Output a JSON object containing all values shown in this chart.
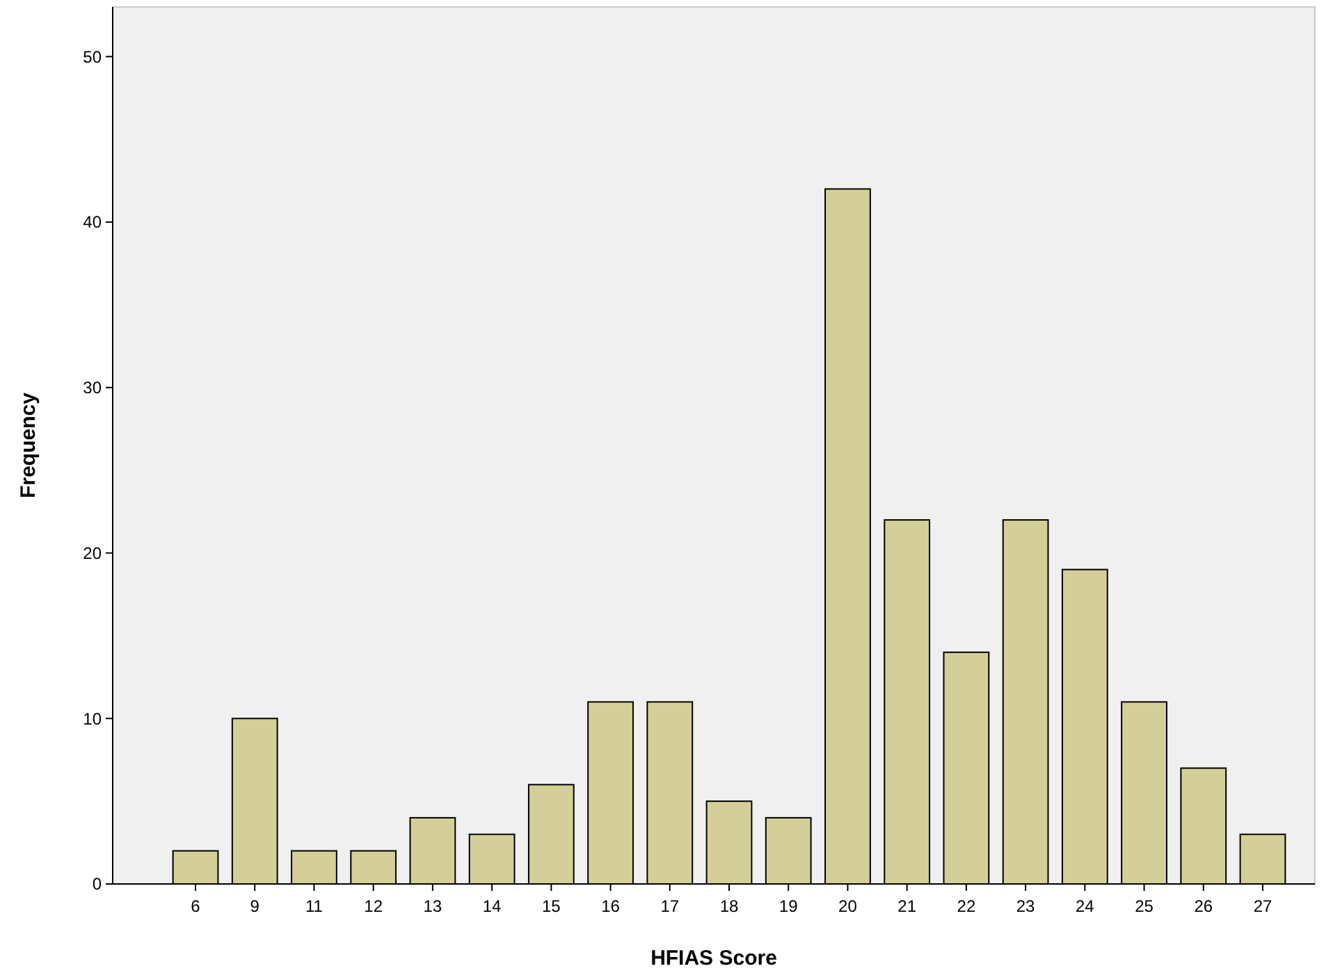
{
  "chart_data": {
    "type": "bar",
    "xlabel": "HFIAS Score",
    "ylabel": "Frequency",
    "categories": [
      "6",
      "9",
      "11",
      "12",
      "13",
      "14",
      "15",
      "16",
      "17",
      "18",
      "19",
      "20",
      "21",
      "22",
      "23",
      "24",
      "25",
      "26",
      "27"
    ],
    "values": [
      2,
      10,
      2,
      2,
      4,
      3,
      6,
      11,
      11,
      5,
      4,
      42,
      22,
      14,
      22,
      19,
      11,
      7,
      3
    ],
    "color": "#d4cf98",
    "ylim": [
      0,
      53
    ],
    "yticks": [
      0,
      10,
      20,
      30,
      40,
      50
    ]
  }
}
